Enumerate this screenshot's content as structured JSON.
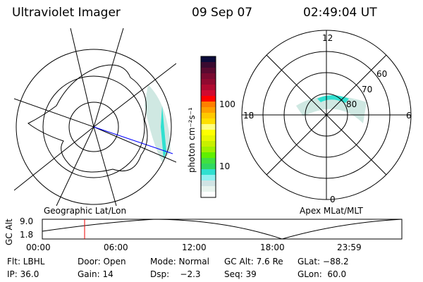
{
  "header": {
    "instrument": "Ultraviolet Imager",
    "date": "09 Sep 07",
    "time": "02:49:04 UT"
  },
  "colorbar": {
    "label": "photon cm⁻²s⁻¹",
    "ticks": [
      "100",
      "10"
    ],
    "colors": [
      "#0b0b3a",
      "#3a0a30",
      "#5a0a30",
      "#7a0a30",
      "#900a30",
      "#b00a30",
      "#d00a30",
      "#ff0000",
      "#ff7f00",
      "#ffa000",
      "#ffc800",
      "#ffe000",
      "#ffff80",
      "#ffff00",
      "#e8f800",
      "#c8f000",
      "#a0f000",
      "#60f000",
      "#40e040",
      "#30d860",
      "#30e0d0",
      "#90f0f0",
      "#d0e4e4",
      "#e8f4ee",
      "#ffffff"
    ]
  },
  "left_map": {
    "label": "Geographic Lat/Lon"
  },
  "right_map": {
    "label": "Apex MLat/MLT",
    "mlt_labels": {
      "top": "12",
      "left": "18",
      "right": "6",
      "bottom": "0"
    },
    "lat_labels": [
      "60",
      "70",
      "80"
    ]
  },
  "altitude_plot": {
    "ylabel": "GC Alt",
    "y_ticks": [
      "9.0",
      "1.8"
    ],
    "x_ticks": [
      "00:00",
      "06:00",
      "12:00",
      "18:00",
      "23:59"
    ],
    "marker_time": "02:49"
  },
  "status": {
    "filter": "Flt: LBHL",
    "door": "Door: Open",
    "mode": "Mode: Normal",
    "gc_alt": "GC Alt: 7.6 Re",
    "glat": "GLat: −88.2",
    "ip": "IP: 36.0",
    "gain": "Gain: 14",
    "dsp": "Dsp:    −2.3",
    "seq": "Seq: 39",
    "glon": "GLon:  60.0"
  }
}
